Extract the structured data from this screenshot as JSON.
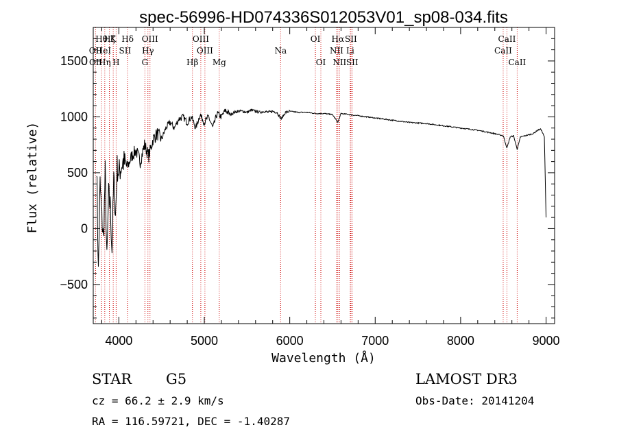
{
  "chart_data": {
    "type": "line",
    "title": "spec-56996-HD074336S012053V01_sp08-034.fits",
    "xlabel": "Wavelength (Å)",
    "ylabel": "Flux (relative)",
    "xlim": [
      3700,
      9100
    ],
    "ylim": [
      -850,
      1800
    ],
    "xticks": [
      4000,
      5000,
      6000,
      7000,
      8000,
      9000
    ],
    "yticks": [
      -500,
      0,
      500,
      1000,
      1500
    ],
    "series": [
      {
        "name": "spectrum",
        "x": [
          3740,
          3760,
          3780,
          3800,
          3820,
          3840,
          3860,
          3880,
          3900,
          3920,
          3940,
          3960,
          3980,
          4000,
          4050,
          4100,
          4150,
          4200,
          4250,
          4300,
          4350,
          4400,
          4450,
          4500,
          4550,
          4600,
          4650,
          4700,
          4750,
          4800,
          4850,
          4900,
          4950,
          5000,
          5050,
          5100,
          5150,
          5200,
          5250,
          5300,
          5350,
          5400,
          5450,
          5500,
          5550,
          5600,
          5650,
          5700,
          5750,
          5800,
          5850,
          5900,
          5950,
          6000,
          6100,
          6200,
          6300,
          6400,
          6500,
          6563,
          6600,
          6700,
          6800,
          6900,
          7000,
          7200,
          7400,
          7600,
          7800,
          8000,
          8200,
          8400,
          8500,
          8542,
          8580,
          8620,
          8662,
          8700,
          8800,
          8850,
          8900,
          8940,
          8980,
          9000
        ],
        "values": [
          600,
          -400,
          400,
          100,
          -100,
          500,
          -300,
          300,
          200,
          -200,
          450,
          100,
          550,
          500,
          600,
          550,
          650,
          700,
          600,
          750,
          650,
          800,
          850,
          800,
          900,
          950,
          900,
          980,
          1000,
          950,
          1000,
          900,
          1020,
          950,
          1000,
          900,
          1030,
          1000,
          1060,
          1020,
          1040,
          1050,
          1050,
          1040,
          1060,
          1050,
          1040,
          1050,
          1040,
          1050,
          1040,
          980,
          1040,
          1050,
          1040,
          1040,
          1030,
          1030,
          1020,
          950,
          1030,
          1020,
          1010,
          1000,
          990,
          970,
          950,
          940,
          920,
          900,
          880,
          850,
          830,
          720,
          820,
          830,
          710,
          820,
          840,
          850,
          880,
          890,
          820,
          100
        ]
      }
    ],
    "line_labels": [
      {
        "text": "Hθ",
        "x": 3797,
        "row": 0
      },
      {
        "text": "Hζ",
        "x": 3889,
        "row": 0
      },
      {
        "text": "K",
        "x": 3934,
        "row": 0
      },
      {
        "text": "Hδ",
        "x": 4102,
        "row": 0
      },
      {
        "text": "OIII",
        "x": 4364,
        "row": 0
      },
      {
        "text": "OIII",
        "x": 4959,
        "row": 0
      },
      {
        "text": "OI",
        "x": 6300,
        "row": 0
      },
      {
        "text": "Hα",
        "x": 6563,
        "row": 0
      },
      {
        "text": "SII",
        "x": 6716,
        "row": 0
      },
      {
        "text": "CaII",
        "x": 8542,
        "row": 0
      },
      {
        "text": "OII",
        "x": 3727,
        "row": 1
      },
      {
        "text": "HeI",
        "x": 3820,
        "row": 1
      },
      {
        "text": "SII",
        "x": 4072,
        "row": 1
      },
      {
        "text": "Hγ",
        "x": 4340,
        "row": 1
      },
      {
        "text": "OIII",
        "x": 5007,
        "row": 1
      },
      {
        "text": "Na",
        "x": 5893,
        "row": 1
      },
      {
        "text": "NII",
        "x": 6548,
        "row": 1
      },
      {
        "text": "Li",
        "x": 6708,
        "row": 1
      },
      {
        "text": "CaII",
        "x": 8498,
        "row": 1
      },
      {
        "text": "OII",
        "x": 3729,
        "row": 2
      },
      {
        "text": "Hη",
        "x": 3835,
        "row": 2
      },
      {
        "text": "H",
        "x": 3968,
        "row": 2
      },
      {
        "text": "G",
        "x": 4305,
        "row": 2
      },
      {
        "text": "Hβ",
        "x": 4861,
        "row": 2
      },
      {
        "text": "Mg",
        "x": 5175,
        "row": 2
      },
      {
        "text": "OI",
        "x": 6364,
        "row": 2
      },
      {
        "text": "NII",
        "x": 6583,
        "row": 2
      },
      {
        "text": "SII",
        "x": 6731,
        "row": 2
      },
      {
        "text": "CaII",
        "x": 8662,
        "row": 2
      }
    ],
    "line_markers": [
      3727,
      3797,
      3835,
      3889,
      3934,
      3968,
      4102,
      4305,
      4340,
      4364,
      4861,
      4959,
      5007,
      5175,
      5893,
      6300,
      6364,
      6548,
      6563,
      6583,
      6708,
      6716,
      6731,
      8498,
      8542,
      8662
    ]
  },
  "footer": {
    "class": "STAR",
    "subclass": "G5",
    "survey": "LAMOST DR3",
    "redshift": "cz = 66.2 ± 2.9 km/s",
    "obs_date": "Obs-Date: 20141204",
    "coords": "RA = 116.59721, DEC =  -1.40287"
  },
  "colors": {
    "marker": "#cc0000",
    "line": "#000000"
  }
}
